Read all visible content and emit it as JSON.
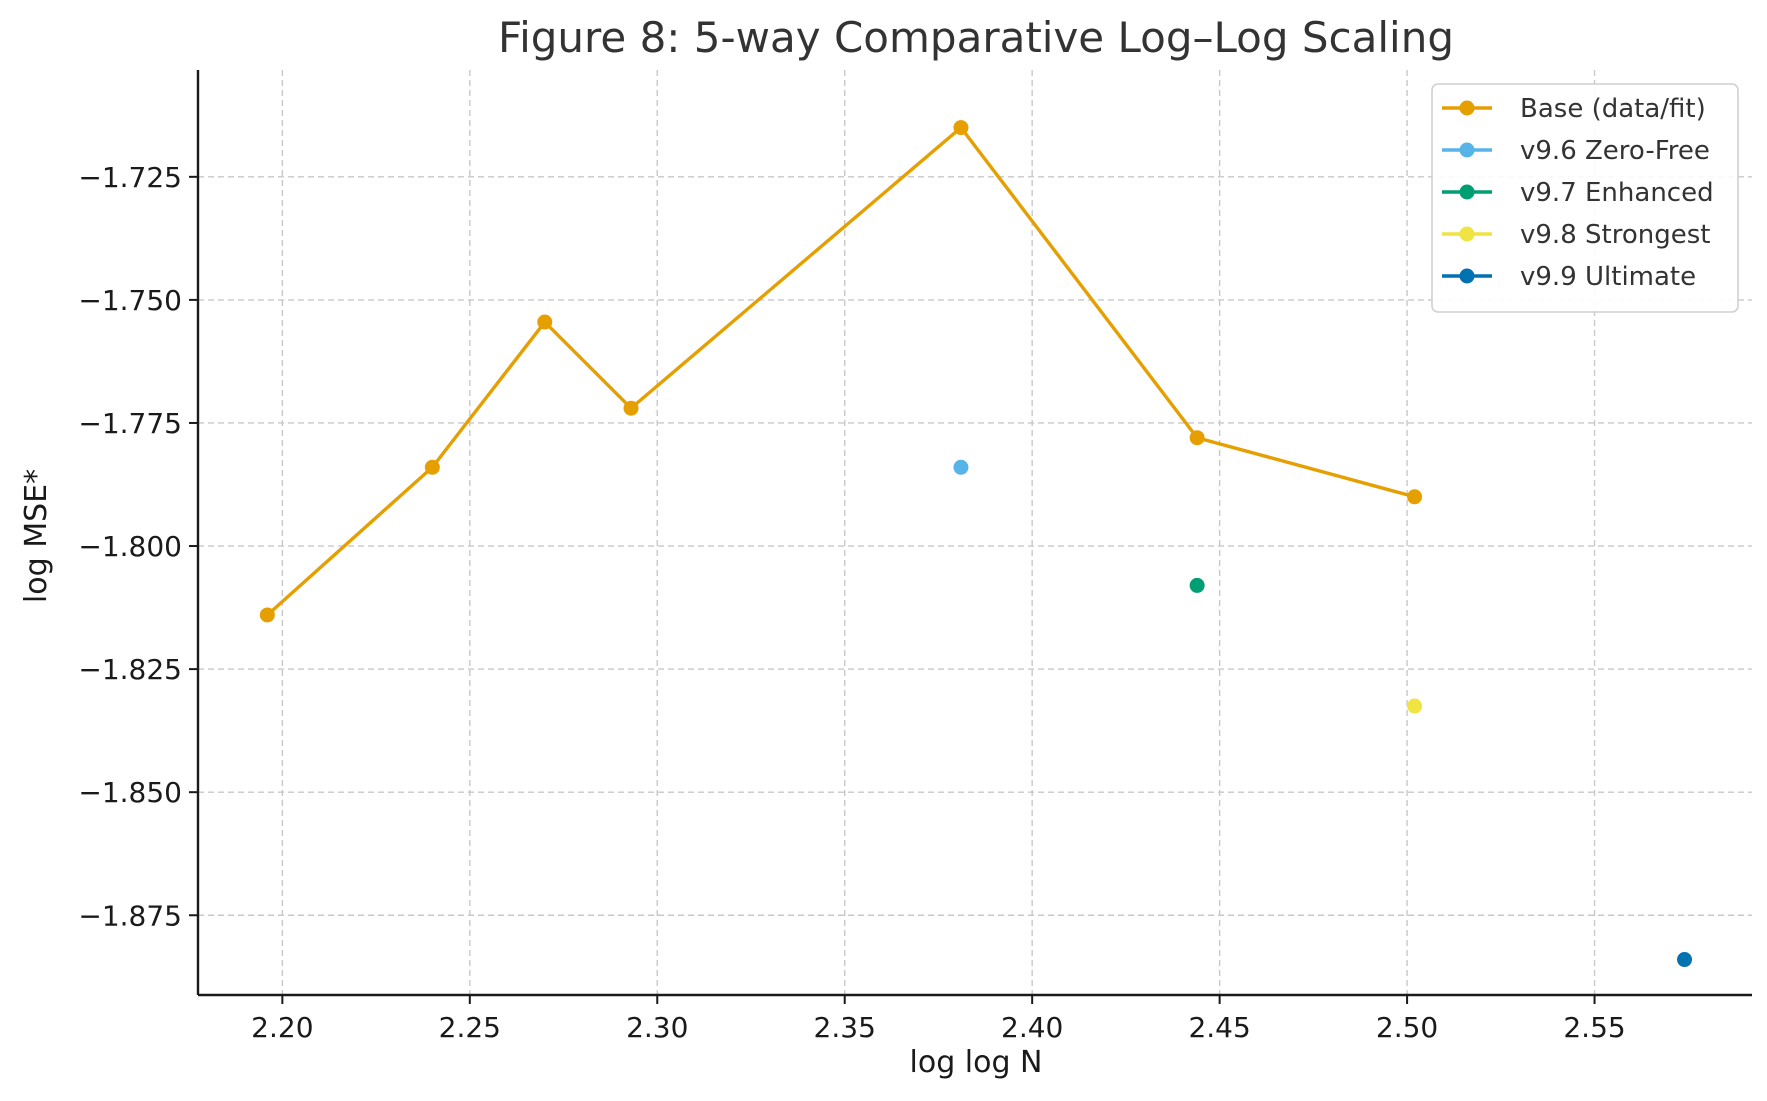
{
  "chart_data": {
    "type": "line",
    "title": "Figure 8: 5-way Comparative Log–Log Scaling",
    "xlabel": "log log N",
    "ylabel": "log MSE*",
    "xlim": [
      2.1775,
      2.592
    ],
    "ylim": [
      -1.8912,
      -1.7033
    ],
    "x_ticks": [
      2.2,
      2.25,
      2.3,
      2.35,
      2.4,
      2.45,
      2.5,
      2.55
    ],
    "x_tick_labels": [
      "2.20",
      "2.25",
      "2.30",
      "2.35",
      "2.40",
      "2.45",
      "2.50",
      "2.55"
    ],
    "y_ticks": [
      -1.725,
      -1.75,
      -1.775,
      -1.8,
      -1.825,
      -1.85,
      -1.875
    ],
    "y_tick_labels": [
      "−1.725",
      "−1.750",
      "−1.775",
      "−1.800",
      "−1.825",
      "−1.850",
      "−1.875"
    ],
    "grid": true,
    "legend_position": "top-right",
    "series": [
      {
        "name": "Base (data/fit)",
        "color": "#E69F00",
        "line": true,
        "points": [
          {
            "x": 2.196,
            "y": -1.814
          },
          {
            "x": 2.24,
            "y": -1.784
          },
          {
            "x": 2.27,
            "y": -1.7545
          },
          {
            "x": 2.293,
            "y": -1.772
          },
          {
            "x": 2.381,
            "y": -1.715
          },
          {
            "x": 2.444,
            "y": -1.778
          },
          {
            "x": 2.502,
            "y": -1.79
          }
        ]
      },
      {
        "name": "v9.6 Zero-Free",
        "color": "#56B4E9",
        "line": false,
        "points": [
          {
            "x": 2.381,
            "y": -1.784
          }
        ]
      },
      {
        "name": "v9.7 Enhanced",
        "color": "#009E73",
        "line": false,
        "points": [
          {
            "x": 2.444,
            "y": -1.808
          }
        ]
      },
      {
        "name": "v9.8 Strongest",
        "color": "#F0E442",
        "line": false,
        "points": [
          {
            "x": 2.502,
            "y": -1.8325
          }
        ]
      },
      {
        "name": "v9.9 Ultimate",
        "color": "#0072B2",
        "line": false,
        "points": [
          {
            "x": 2.574,
            "y": -1.884
          }
        ]
      }
    ]
  }
}
